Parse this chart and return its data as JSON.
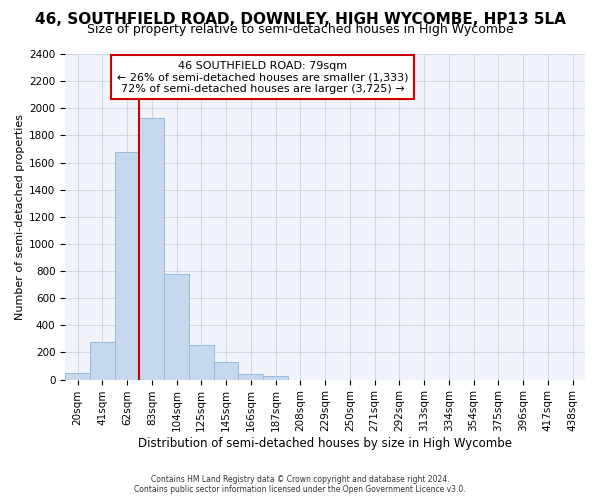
{
  "title": "46, SOUTHFIELD ROAD, DOWNLEY, HIGH WYCOMBE, HP13 5LA",
  "subtitle": "Size of property relative to semi-detached houses in High Wycombe",
  "xlabel": "Distribution of semi-detached houses by size in High Wycombe",
  "ylabel": "Number of semi-detached properties",
  "footnote1": "Contains HM Land Registry data © Crown copyright and database right 2024.",
  "footnote2": "Contains public sector information licensed under the Open Government Licence v3.0.",
  "annotation_line1": "46 SOUTHFIELD ROAD: 79sqm",
  "annotation_line2": "← 26% of semi-detached houses are smaller (1,333)",
  "annotation_line3": "72% of semi-detached houses are larger (3,725) →",
  "bar_color": "#c5d8ee",
  "bar_edge_color": "#9bbcd8",
  "highlight_color": "#cc0000",
  "annotation_box_color": "#ffffff",
  "annotation_box_edge": "#cc0000",
  "background_color": "#ffffff",
  "plot_bg_color": "#f0f4fa",
  "grid_color": "#d0d8e8",
  "categories": [
    "20sqm",
    "41sqm",
    "62sqm",
    "83sqm",
    "104sqm",
    "125sqm",
    "145sqm",
    "166sqm",
    "187sqm",
    "208sqm",
    "229sqm",
    "250sqm",
    "271sqm",
    "292sqm",
    "313sqm",
    "334sqm",
    "354sqm",
    "375sqm",
    "396sqm",
    "417sqm",
    "438sqm"
  ],
  "values": [
    50,
    280,
    1680,
    1930,
    780,
    255,
    130,
    40,
    25,
    0,
    0,
    0,
    0,
    0,
    0,
    0,
    0,
    0,
    0,
    0,
    0
  ],
  "red_line_x": 2.5,
  "ylim_max": 2400,
  "ytick_step": 200,
  "title_fontsize": 11,
  "subtitle_fontsize": 9
}
